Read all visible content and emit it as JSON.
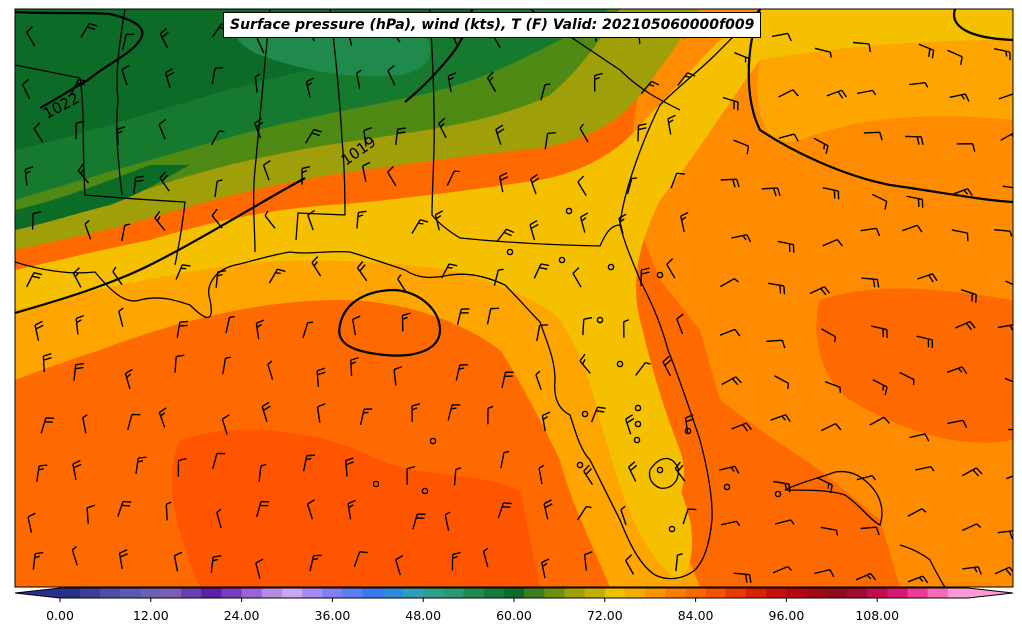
{
  "title": "Surface pressure (hPa), wind (kts), T (F) Valid: 202105060000f009",
  "isobar_labels": [
    "1022",
    "1019"
  ],
  "colorbar": {
    "tick_labels": [
      "0.00",
      "12.00",
      "24.00",
      "36.00",
      "48.00",
      "60.00",
      "72.00",
      "84.00",
      "96.00",
      "108.00"
    ],
    "colors": [
      "#2b2f8c",
      "#3c3f9a",
      "#4d4fa6",
      "#5c5aae",
      "#6d5fb2",
      "#7b5fb3",
      "#6a3fb0",
      "#5b22a8",
      "#7c3cc0",
      "#9b63d6",
      "#b58be3",
      "#c9a7ef",
      "#a78bf5",
      "#7f7ff6",
      "#5a7ff3",
      "#3a78f0",
      "#2d8bd8",
      "#2e9fb6",
      "#2f9f8a",
      "#289a6d",
      "#1f8b53",
      "#167a3c",
      "#0b6b26",
      "#3f7f1a",
      "#6f8f10",
      "#9fa00a",
      "#c5ad05",
      "#f0c000",
      "#f6ab00",
      "#f99500",
      "#fa7f00",
      "#f86a00",
      "#f45200",
      "#e83a00",
      "#db2200",
      "#cc0c08",
      "#b8060e",
      "#a10915",
      "#8e0b1c",
      "#a00d2f",
      "#bf0f4e",
      "#d9176e",
      "#ec3a96",
      "#f66bb8",
      "#fb9bd2"
    ]
  },
  "colors": {
    "gulf": "#ff6a00",
    "gulf_deep": "#ff5500",
    "atlantic": "#ff8c00",
    "florida": "#ffa500",
    "warm_band": "#f5c000",
    "olive": "#9f9f0a",
    "green_light": "#4f8a15",
    "green_mid": "#157a2e",
    "green_dark": "#0c6b26"
  }
}
